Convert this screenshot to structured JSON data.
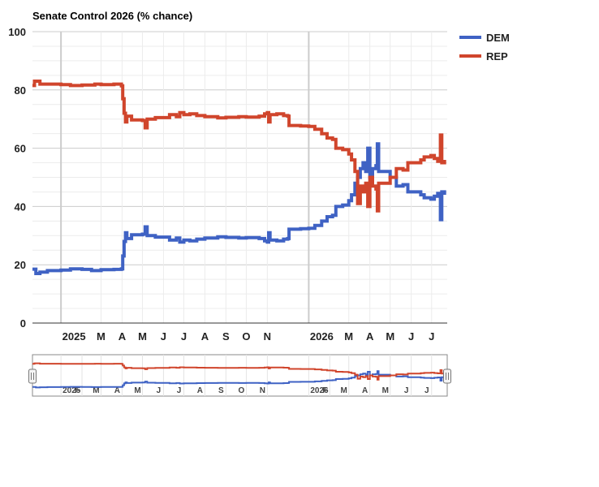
{
  "chart_data": {
    "type": "line",
    "title": "Senate Control 2026 (% chance)",
    "xlabel": "",
    "ylabel": "",
    "ylim": [
      0,
      100
    ],
    "y_ticks": [
      0,
      20,
      40,
      60,
      80,
      100
    ],
    "x_range": [
      "2024-11-20",
      "2026-07-24"
    ],
    "x_ticks": [
      {
        "date": "2025-01-01",
        "label": "2025",
        "major": true
      },
      {
        "date": "2025-03-01",
        "label": "M"
      },
      {
        "date": "2025-04-01",
        "label": "A"
      },
      {
        "date": "2025-05-01",
        "label": "M"
      },
      {
        "date": "2025-06-01",
        "label": "J"
      },
      {
        "date": "2025-07-01",
        "label": "J"
      },
      {
        "date": "2025-08-01",
        "label": "A"
      },
      {
        "date": "2025-09-01",
        "label": "S"
      },
      {
        "date": "2025-10-01",
        "label": "O"
      },
      {
        "date": "2025-11-01",
        "label": "N"
      },
      {
        "date": "2026-01-01",
        "label": "2026",
        "major": true
      },
      {
        "date": "2026-03-01",
        "label": "M"
      },
      {
        "date": "2026-04-01",
        "label": "A"
      },
      {
        "date": "2026-05-01",
        "label": "M"
      },
      {
        "date": "2026-06-01",
        "label": "J"
      },
      {
        "date": "2026-07-01",
        "label": "J"
      }
    ],
    "navigator_ticks": [
      {
        "date": "2025-01-01",
        "label": "2025"
      },
      {
        "date": "2025-02-01",
        "label": "F"
      },
      {
        "date": "2025-03-01",
        "label": "M"
      },
      {
        "date": "2025-04-01",
        "label": "A"
      },
      {
        "date": "2025-05-01",
        "label": "M"
      },
      {
        "date": "2025-06-01",
        "label": "J"
      },
      {
        "date": "2025-07-01",
        "label": "J"
      },
      {
        "date": "2025-08-01",
        "label": "A"
      },
      {
        "date": "2025-09-01",
        "label": "S"
      },
      {
        "date": "2025-10-01",
        "label": "O"
      },
      {
        "date": "2025-11-01",
        "label": "N"
      },
      {
        "date": "2026-01-01",
        "label": "2026"
      },
      {
        "date": "2026-02-01",
        "label": "F"
      },
      {
        "date": "2026-03-01",
        "label": "M"
      },
      {
        "date": "2026-04-01",
        "label": "A"
      },
      {
        "date": "2026-05-01",
        "label": "M"
      },
      {
        "date": "2026-06-01",
        "label": "J"
      },
      {
        "date": "2026-07-01",
        "label": "J"
      }
    ],
    "grid": true,
    "legend_position": "right",
    "series": [
      {
        "name": "DEM",
        "color": "#3f62c4",
        "points": [
          [
            "2024-11-20",
            18.5
          ],
          [
            "2024-11-25",
            17
          ],
          [
            "2024-12-01",
            17.5
          ],
          [
            "2024-12-12",
            18
          ],
          [
            "2025-01-01",
            18.2
          ],
          [
            "2025-01-15",
            18.6
          ],
          [
            "2025-02-01",
            18.4
          ],
          [
            "2025-02-15",
            18
          ],
          [
            "2025-03-01",
            18.3
          ],
          [
            "2025-03-20",
            18.4
          ],
          [
            "2025-03-31",
            18.6
          ],
          [
            "2025-04-02",
            23
          ],
          [
            "2025-04-04",
            28
          ],
          [
            "2025-04-06",
            31
          ],
          [
            "2025-04-08",
            29
          ],
          [
            "2025-04-15",
            30.3
          ],
          [
            "2025-05-01",
            30.5
          ],
          [
            "2025-05-05",
            33
          ],
          [
            "2025-05-08",
            30
          ],
          [
            "2025-05-20",
            29.5
          ],
          [
            "2025-06-01",
            29.5
          ],
          [
            "2025-06-10",
            28.5
          ],
          [
            "2025-06-20",
            29.2
          ],
          [
            "2025-06-25",
            27.8
          ],
          [
            "2025-07-01",
            28.5
          ],
          [
            "2025-07-10",
            28.2
          ],
          [
            "2025-07-20",
            28.8
          ],
          [
            "2025-08-01",
            29.2
          ],
          [
            "2025-08-20",
            29.6
          ],
          [
            "2025-09-01",
            29.4
          ],
          [
            "2025-09-20",
            29.2
          ],
          [
            "2025-10-01",
            29.3
          ],
          [
            "2025-10-20",
            29
          ],
          [
            "2025-10-28",
            28.2
          ],
          [
            "2025-11-01",
            27.8
          ],
          [
            "2025-11-03",
            31
          ],
          [
            "2025-11-05",
            28.5
          ],
          [
            "2025-11-15",
            28.2
          ],
          [
            "2025-11-25",
            28.8
          ],
          [
            "2025-12-01",
            29
          ],
          [
            "2025-12-03",
            32.2
          ],
          [
            "2025-12-20",
            32.4
          ],
          [
            "2026-01-01",
            32.5
          ],
          [
            "2026-01-10",
            33.5
          ],
          [
            "2026-01-20",
            35
          ],
          [
            "2026-01-28",
            36.5
          ],
          [
            "2026-02-05",
            37
          ],
          [
            "2026-02-10",
            40
          ],
          [
            "2026-02-20",
            40.5
          ],
          [
            "2026-03-01",
            42
          ],
          [
            "2026-03-05",
            44
          ],
          [
            "2026-03-10",
            48
          ],
          [
            "2026-03-14",
            50
          ],
          [
            "2026-03-18",
            53
          ],
          [
            "2026-03-22",
            55
          ],
          [
            "2026-03-26",
            52
          ],
          [
            "2026-03-29",
            60
          ],
          [
            "2026-04-01",
            50
          ],
          [
            "2026-04-05",
            53
          ],
          [
            "2026-04-10",
            54
          ],
          [
            "2026-04-12",
            61.5
          ],
          [
            "2026-04-14",
            52
          ],
          [
            "2026-04-20",
            52
          ],
          [
            "2026-05-01",
            50
          ],
          [
            "2026-05-10",
            47
          ],
          [
            "2026-05-20",
            47.5
          ],
          [
            "2026-05-27",
            45
          ],
          [
            "2026-06-05",
            45
          ],
          [
            "2026-06-15",
            44
          ],
          [
            "2026-06-20",
            43
          ],
          [
            "2026-06-30",
            42.5
          ],
          [
            "2026-07-05",
            43.5
          ],
          [
            "2026-07-10",
            44.5
          ],
          [
            "2026-07-14",
            35.5
          ],
          [
            "2026-07-16",
            45
          ],
          [
            "2026-07-20",
            44
          ]
        ]
      },
      {
        "name": "REP",
        "color": "#d0452c",
        "points": [
          [
            "2024-11-20",
            81.5
          ],
          [
            "2024-11-23",
            83
          ],
          [
            "2024-12-01",
            82
          ],
          [
            "2024-12-20",
            82
          ],
          [
            "2025-01-01",
            81.8
          ],
          [
            "2025-01-15",
            81.5
          ],
          [
            "2025-02-01",
            81.7
          ],
          [
            "2025-02-20",
            82
          ],
          [
            "2025-03-01",
            81.8
          ],
          [
            "2025-03-20",
            82
          ],
          [
            "2025-03-31",
            81.4
          ],
          [
            "2025-04-02",
            77
          ],
          [
            "2025-04-04",
            72
          ],
          [
            "2025-04-06",
            69
          ],
          [
            "2025-04-08",
            71
          ],
          [
            "2025-04-15",
            69.7
          ],
          [
            "2025-05-01",
            69.5
          ],
          [
            "2025-05-05",
            67
          ],
          [
            "2025-05-08",
            70
          ],
          [
            "2025-05-20",
            70.5
          ],
          [
            "2025-06-01",
            70.5
          ],
          [
            "2025-06-10",
            71.5
          ],
          [
            "2025-06-20",
            70.8
          ],
          [
            "2025-06-25",
            72.2
          ],
          [
            "2025-07-01",
            71.5
          ],
          [
            "2025-07-10",
            71.8
          ],
          [
            "2025-07-20",
            71.2
          ],
          [
            "2025-08-01",
            70.8
          ],
          [
            "2025-08-20",
            70.4
          ],
          [
            "2025-09-01",
            70.6
          ],
          [
            "2025-09-20",
            70.8
          ],
          [
            "2025-10-01",
            70.7
          ],
          [
            "2025-10-20",
            71
          ],
          [
            "2025-10-28",
            71.8
          ],
          [
            "2025-11-01",
            72.2
          ],
          [
            "2025-11-03",
            69
          ],
          [
            "2025-11-05",
            71.5
          ],
          [
            "2025-11-15",
            71.8
          ],
          [
            "2025-11-25",
            71.2
          ],
          [
            "2025-12-01",
            71
          ],
          [
            "2025-12-03",
            67.8
          ],
          [
            "2025-12-20",
            67.6
          ],
          [
            "2026-01-01",
            67.5
          ],
          [
            "2026-01-10",
            66.5
          ],
          [
            "2026-01-20",
            65
          ],
          [
            "2026-01-28",
            63.5
          ],
          [
            "2026-02-05",
            63
          ],
          [
            "2026-02-10",
            60
          ],
          [
            "2026-02-20",
            59.5
          ],
          [
            "2026-03-01",
            58
          ],
          [
            "2026-03-05",
            56
          ],
          [
            "2026-03-10",
            52
          ],
          [
            "2026-03-14",
            41
          ],
          [
            "2026-03-18",
            47
          ],
          [
            "2026-03-22",
            45
          ],
          [
            "2026-03-26",
            48
          ],
          [
            "2026-03-29",
            40
          ],
          [
            "2026-04-01",
            50
          ],
          [
            "2026-04-05",
            47
          ],
          [
            "2026-04-10",
            46
          ],
          [
            "2026-04-12",
            38.5
          ],
          [
            "2026-04-14",
            48
          ],
          [
            "2026-04-20",
            48
          ],
          [
            "2026-05-01",
            50
          ],
          [
            "2026-05-10",
            53
          ],
          [
            "2026-05-20",
            52.5
          ],
          [
            "2026-05-27",
            55
          ],
          [
            "2026-06-05",
            55
          ],
          [
            "2026-06-15",
            56
          ],
          [
            "2026-06-20",
            57
          ],
          [
            "2026-06-30",
            57.5
          ],
          [
            "2026-07-05",
            56.5
          ],
          [
            "2026-07-10",
            55.5
          ],
          [
            "2026-07-14",
            64.5
          ],
          [
            "2026-07-16",
            55
          ],
          [
            "2026-07-20",
            56
          ]
        ]
      }
    ]
  }
}
